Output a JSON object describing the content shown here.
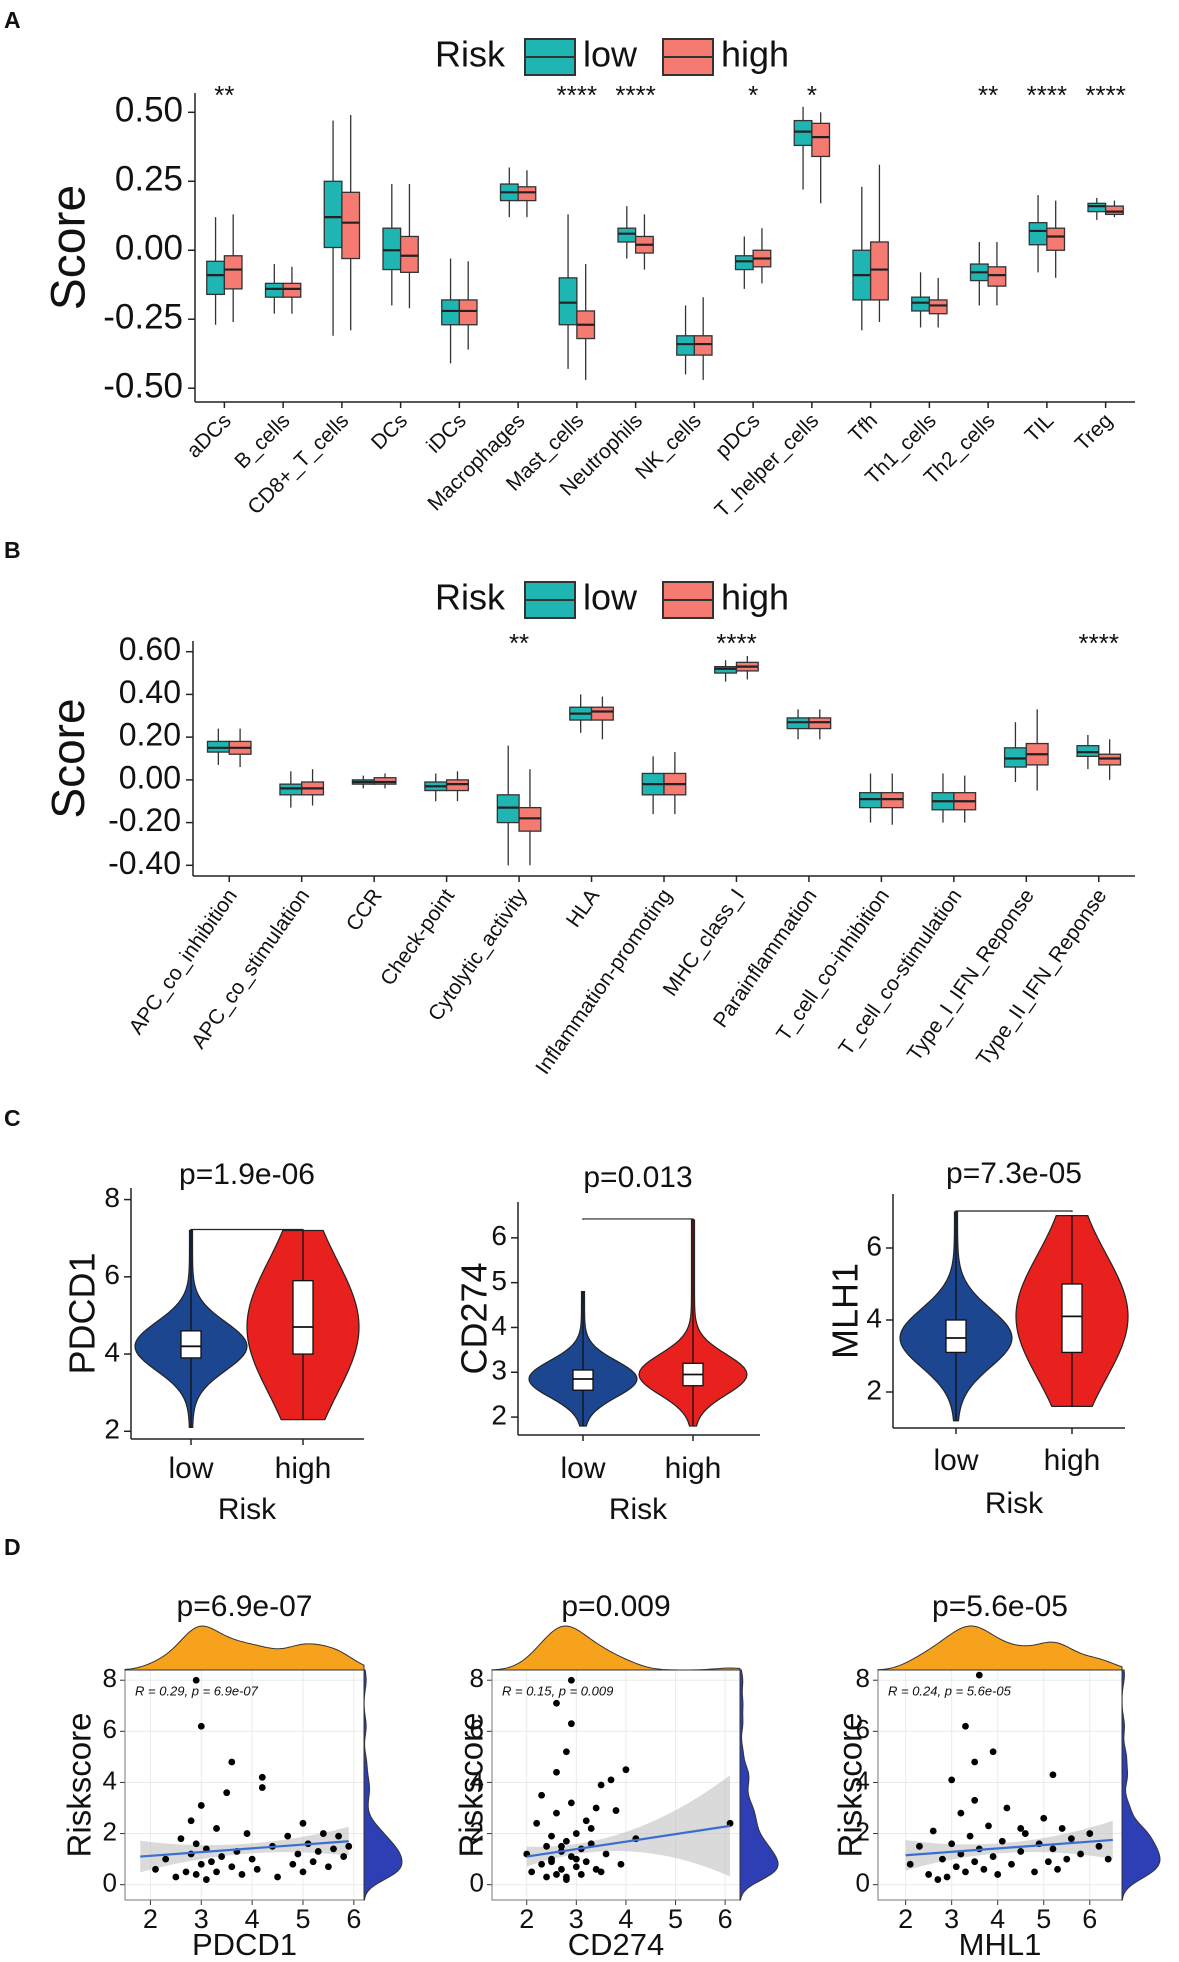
{
  "chart_data": [
    {
      "type": "box",
      "panel_label": "A",
      "legend_title": "Risk",
      "ylabel": "Score",
      "categories": [
        "aDCs",
        "B_cells",
        "CD8+_T_cells",
        "DCs",
        "iDCs",
        "Macrophages",
        "Mast_cells",
        "Neutrophils",
        "NK_cells",
        "pDCs",
        "T_helper_cells",
        "Tfh",
        "Th1_cells",
        "Th2_cells",
        "TIL",
        "Treg"
      ],
      "annotations": [
        "**",
        null,
        null,
        null,
        null,
        null,
        "****",
        "****",
        null,
        "*",
        "*",
        null,
        null,
        "**",
        "****",
        "****"
      ],
      "series": [
        {
          "name": "low",
          "color": "#1fb5b3",
          "values": [
            [
              -0.27,
              -0.16,
              -0.09,
              -0.04,
              0.12
            ],
            [
              -0.23,
              -0.17,
              -0.14,
              -0.12,
              -0.05
            ],
            [
              -0.31,
              0.01,
              0.12,
              0.25,
              0.47
            ],
            [
              -0.2,
              -0.07,
              0.0,
              0.08,
              0.24
            ],
            [
              -0.41,
              -0.27,
              -0.22,
              -0.18,
              -0.03
            ],
            [
              0.12,
              0.18,
              0.21,
              0.24,
              0.3
            ],
            [
              -0.43,
              -0.27,
              -0.19,
              -0.1,
              0.13
            ],
            [
              -0.03,
              0.03,
              0.06,
              0.08,
              0.16
            ],
            [
              -0.45,
              -0.38,
              -0.34,
              -0.31,
              -0.2
            ],
            [
              -0.14,
              -0.07,
              -0.04,
              -0.02,
              0.05
            ],
            [
              0.22,
              0.38,
              0.43,
              0.47,
              0.52
            ],
            [
              -0.29,
              -0.18,
              -0.09,
              0.0,
              0.23
            ],
            [
              -0.28,
              -0.22,
              -0.19,
              -0.17,
              -0.08
            ],
            [
              -0.2,
              -0.11,
              -0.08,
              -0.05,
              0.03
            ],
            [
              -0.08,
              0.02,
              0.07,
              0.1,
              0.2
            ],
            [
              0.11,
              0.14,
              0.16,
              0.17,
              0.19
            ]
          ]
        },
        {
          "name": "high",
          "color": "#f47a72",
          "values": [
            [
              -0.26,
              -0.14,
              -0.07,
              -0.02,
              0.13
            ],
            [
              -0.23,
              -0.17,
              -0.14,
              -0.12,
              -0.06
            ],
            [
              -0.29,
              -0.03,
              0.1,
              0.21,
              0.49
            ],
            [
              -0.21,
              -0.08,
              -0.02,
              0.05,
              0.24
            ],
            [
              -0.36,
              -0.27,
              -0.22,
              -0.18,
              -0.04
            ],
            [
              0.12,
              0.18,
              0.21,
              0.23,
              0.29
            ],
            [
              -0.47,
              -0.32,
              -0.27,
              -0.22,
              -0.05
            ],
            [
              -0.07,
              -0.01,
              0.02,
              0.05,
              0.13
            ],
            [
              -0.47,
              -0.38,
              -0.34,
              -0.31,
              -0.17
            ],
            [
              -0.12,
              -0.06,
              -0.03,
              0.0,
              0.08
            ],
            [
              0.17,
              0.34,
              0.41,
              0.46,
              0.5
            ],
            [
              -0.26,
              -0.18,
              -0.07,
              0.03,
              0.31
            ],
            [
              -0.28,
              -0.23,
              -0.2,
              -0.18,
              -0.1
            ],
            [
              -0.2,
              -0.13,
              -0.09,
              -0.06,
              0.03
            ],
            [
              -0.1,
              0.0,
              0.05,
              0.08,
              0.18
            ],
            [
              0.12,
              0.13,
              0.14,
              0.16,
              0.18
            ]
          ]
        }
      ],
      "ylim": [
        -0.55,
        0.57
      ],
      "yticks": [
        {
          "value": -0.5,
          "label": "-0.50"
        },
        {
          "value": -0.25,
          "label": "-0.25"
        },
        {
          "value": 0,
          "label": "0.00"
        },
        {
          "value": 0.25,
          "label": "0.25"
        },
        {
          "value": 0.5,
          "label": "0.50"
        }
      ]
    },
    {
      "type": "box",
      "panel_label": "B",
      "legend_title": "Risk",
      "ylabel": "Score",
      "categories": [
        "APC_co_inhibition",
        "APC_co_stimulation",
        "CCR",
        "Check-point",
        "Cytolytic_activity",
        "HLA",
        "Inflammation-promoting",
        "MHC_class_I",
        "Parainflammation",
        "T_cell_co-inhibition",
        "T_cell_co-stimulation",
        "Type_I_IFN_Reponse",
        "Type_II_IFN_Reponse"
      ],
      "annotations": [
        null,
        null,
        null,
        null,
        "**",
        null,
        null,
        "****",
        null,
        null,
        null,
        null,
        "****"
      ],
      "series": [
        {
          "name": "low",
          "color": "#1fb5b3",
          "values": [
            [
              0.07,
              0.13,
              0.15,
              0.18,
              0.24
            ],
            [
              -0.13,
              -0.07,
              -0.04,
              -0.02,
              0.04
            ],
            [
              -0.04,
              -0.02,
              -0.01,
              0.0,
              0.02
            ],
            [
              -0.1,
              -0.05,
              -0.03,
              -0.01,
              0.03
            ],
            [
              -0.4,
              -0.2,
              -0.13,
              -0.07,
              0.16
            ],
            [
              0.22,
              0.28,
              0.31,
              0.34,
              0.4
            ],
            [
              -0.16,
              -0.07,
              -0.02,
              0.03,
              0.11
            ],
            [
              0.46,
              0.5,
              0.52,
              0.53,
              0.56
            ],
            [
              0.19,
              0.24,
              0.27,
              0.29,
              0.33
            ],
            [
              -0.2,
              -0.13,
              -0.09,
              -0.06,
              0.03
            ],
            [
              -0.2,
              -0.14,
              -0.1,
              -0.06,
              0.03
            ],
            [
              -0.01,
              0.06,
              0.1,
              0.15,
              0.27
            ],
            [
              0.05,
              0.11,
              0.13,
              0.16,
              0.21
            ]
          ]
        },
        {
          "name": "high",
          "color": "#f47a72",
          "values": [
            [
              0.06,
              0.12,
              0.15,
              0.18,
              0.24
            ],
            [
              -0.12,
              -0.07,
              -0.04,
              -0.01,
              0.05
            ],
            [
              -0.04,
              -0.02,
              -0.01,
              0.01,
              0.03
            ],
            [
              -0.1,
              -0.05,
              -0.02,
              0.0,
              0.04
            ],
            [
              -0.4,
              -0.24,
              -0.18,
              -0.13,
              0.05
            ],
            [
              0.19,
              0.28,
              0.32,
              0.34,
              0.39
            ],
            [
              -0.16,
              -0.07,
              -0.02,
              0.03,
              0.13
            ],
            [
              0.47,
              0.51,
              0.53,
              0.55,
              0.58
            ],
            [
              0.19,
              0.24,
              0.27,
              0.29,
              0.33
            ],
            [
              -0.21,
              -0.13,
              -0.09,
              -0.06,
              0.03
            ],
            [
              -0.2,
              -0.14,
              -0.1,
              -0.06,
              0.02
            ],
            [
              -0.05,
              0.07,
              0.12,
              0.17,
              0.33
            ],
            [
              0.0,
              0.07,
              0.1,
              0.12,
              0.19
            ]
          ]
        }
      ],
      "ylim": [
        -0.45,
        0.65
      ],
      "yticks": [
        {
          "value": -0.4,
          "label": "-0.40"
        },
        {
          "value": -0.2,
          "label": "-0.20"
        },
        {
          "value": 0,
          "label": "0.00"
        },
        {
          "value": 0.2,
          "label": "0.20"
        },
        {
          "value": 0.4,
          "label": "0.40"
        },
        {
          "value": 0.6,
          "label": "0.60"
        }
      ]
    },
    {
      "type": "violin",
      "panel_label": "C",
      "title": "p=1.9e-06",
      "ylabel": "PDCD1",
      "xlabel": "Risk",
      "categories": [
        "low",
        "high"
      ],
      "colors": [
        "#1c4690",
        "#e8201e"
      ],
      "values": [
        [
          2.1,
          3.9,
          4.2,
          4.6,
          7.2
        ],
        [
          2.3,
          4.0,
          4.7,
          5.9,
          7.2
        ]
      ],
      "ylim": [
        1.8,
        8.3
      ],
      "yticks": [
        2,
        4,
        6,
        8
      ]
    },
    {
      "type": "violin",
      "title": "p=0.013",
      "ylabel": "CD274",
      "xlabel": "Risk",
      "categories": [
        "low",
        "high"
      ],
      "colors": [
        "#1c4690",
        "#e8201e"
      ],
      "values": [
        [
          1.8,
          2.6,
          2.85,
          3.05,
          4.8
        ],
        [
          1.8,
          2.7,
          2.95,
          3.2,
          6.4
        ]
      ],
      "ylim": [
        1.6,
        6.8
      ],
      "yticks": [
        2,
        3,
        4,
        5,
        6
      ]
    },
    {
      "type": "violin",
      "title": "p=7.3e-05",
      "ylabel": "MLH1",
      "xlabel": "Risk",
      "categories": [
        "low",
        "high"
      ],
      "colors": [
        "#1c4690",
        "#e8201e"
      ],
      "values": [
        [
          1.2,
          3.1,
          3.5,
          4.0,
          7.0
        ],
        [
          1.6,
          3.1,
          4.1,
          5.0,
          6.9
        ]
      ],
      "ylim": [
        1.0,
        7.5
      ],
      "yticks": [
        2,
        4,
        6
      ]
    },
    {
      "type": "scatter",
      "panel_label": "D",
      "title": "p=6.9e-07",
      "annotation": "R = 0.29, p = 6.9e-07",
      "xlabel": "PDCD1",
      "ylabel": "Riskscore",
      "x": [
        2.1,
        2.3,
        2.5,
        2.6,
        2.7,
        2.8,
        2.8,
        2.9,
        2.9,
        3.0,
        3.0,
        3.1,
        3.1,
        3.2,
        3.3,
        3.3,
        3.4,
        3.5,
        3.6,
        3.7,
        3.8,
        3.9,
        4.0,
        4.1,
        4.2,
        4.4,
        4.5,
        4.7,
        4.8,
        4.9,
        5.0,
        5.0,
        5.1,
        5.2,
        5.3,
        5.4,
        5.5,
        5.6,
        5.7,
        5.8,
        5.9,
        3.0,
        3.6,
        4.2,
        2.9
      ],
      "y": [
        0.6,
        1.0,
        0.3,
        1.8,
        0.5,
        1.2,
        2.5,
        0.4,
        1.6,
        0.8,
        3.1,
        0.2,
        1.4,
        0.9,
        2.2,
        0.5,
        1.1,
        3.6,
        0.7,
        1.3,
        0.4,
        2.0,
        1.0,
        0.6,
        3.8,
        1.5,
        0.3,
        1.9,
        0.8,
        1.2,
        2.4,
        0.5,
        1.6,
        0.9,
        1.3,
        2.0,
        0.7,
        1.4,
        1.9,
        1.1,
        1.5,
        6.2,
        4.8,
        4.2,
        8.0
      ],
      "fit": {
        "x": [
          1.8,
          5.9
        ],
        "y": [
          1.1,
          1.7
        ]
      },
      "color": "#000000",
      "fit_color": "#3a6fd0",
      "xlim": [
        1.5,
        6.2
      ],
      "xticks": [
        2,
        3,
        4,
        5,
        6
      ],
      "ylim": [
        -0.6,
        8.4
      ],
      "yticks": [
        0,
        2,
        4,
        6,
        8
      ]
    },
    {
      "type": "scatter",
      "title": "p=0.009",
      "annotation": "R = 0.15, p = 0.009",
      "xlabel": "CD274",
      "ylabel": "Riskscore",
      "x": [
        2.0,
        2.1,
        2.2,
        2.3,
        2.4,
        2.4,
        2.5,
        2.5,
        2.6,
        2.6,
        2.7,
        2.7,
        2.8,
        2.8,
        2.9,
        2.9,
        3.0,
        3.0,
        3.1,
        3.1,
        3.2,
        3.2,
        3.3,
        3.4,
        3.5,
        3.6,
        3.7,
        3.8,
        3.9,
        4.0,
        4.2,
        2.3,
        2.6,
        2.8,
        3.0,
        2.5,
        2.9,
        3.3,
        2.7,
        3.5,
        6.1,
        2.6,
        2.9,
        3.4,
        2.8
      ],
      "y": [
        1.2,
        0.5,
        2.4,
        0.8,
        1.5,
        0.3,
        1.9,
        1.0,
        0.4,
        2.8,
        1.3,
        0.6,
        1.7,
        0.2,
        3.2,
        1.1,
        0.7,
        2.0,
        1.4,
        0.4,
        2.5,
        0.9,
        1.6,
        0.6,
        3.9,
        1.2,
        4.1,
        2.9,
        0.8,
        4.5,
        1.8,
        3.5,
        4.4,
        5.2,
        1.0,
        0.9,
        6.3,
        2.2,
        1.5,
        0.5,
        2.4,
        7.1,
        8.0,
        3.0,
        0.3
      ],
      "fit": {
        "x": [
          2.0,
          6.1
        ],
        "y": [
          1.1,
          2.3
        ]
      },
      "color": "#000000",
      "fit_color": "#3a6fd0",
      "xlim": [
        1.3,
        6.3
      ],
      "xticks": [
        2,
        3,
        4,
        5,
        6
      ],
      "ylim": [
        -0.6,
        8.4
      ],
      "yticks": [
        0,
        2,
        4,
        6,
        8
      ]
    },
    {
      "type": "scatter",
      "title": "p=5.6e-05",
      "annotation": "R = 0.24, p = 5.6e-05",
      "xlabel": "MHL1",
      "ylabel": "Riskscore",
      "x": [
        2.1,
        2.3,
        2.5,
        2.6,
        2.8,
        2.9,
        3.0,
        3.1,
        3.2,
        3.2,
        3.3,
        3.4,
        3.5,
        3.5,
        3.6,
        3.7,
        3.8,
        3.9,
        4.0,
        4.1,
        4.2,
        4.3,
        4.5,
        4.6,
        4.8,
        4.9,
        5.0,
        5.1,
        5.2,
        5.3,
        5.4,
        5.5,
        5.6,
        5.8,
        6.0,
        6.2,
        6.4,
        3.0,
        3.3,
        3.5,
        3.9,
        5.2,
        3.6,
        4.5,
        2.7
      ],
      "y": [
        0.8,
        1.5,
        0.4,
        2.1,
        1.0,
        0.3,
        1.6,
        0.7,
        2.8,
        1.2,
        0.5,
        1.9,
        0.9,
        3.3,
        1.4,
        0.6,
        2.3,
        1.1,
        0.4,
        1.7,
        3.0,
        0.8,
        1.3,
        2.0,
        0.5,
        1.6,
        2.6,
        0.9,
        1.4,
        0.6,
        2.2,
        1.0,
        1.8,
        1.2,
        2.0,
        1.5,
        1.0,
        4.1,
        6.2,
        4.8,
        5.2,
        4.3,
        8.2,
        2.2,
        0.2
      ],
      "fit": {
        "x": [
          2.0,
          6.5
        ],
        "y": [
          1.15,
          1.75
        ]
      },
      "color": "#000000",
      "fit_color": "#3a6fd0",
      "xlim": [
        1.4,
        6.7
      ],
      "xticks": [
        2,
        3,
        4,
        5,
        6
      ],
      "ylim": [
        -0.6,
        8.4
      ],
      "yticks": [
        0,
        2,
        4,
        6,
        8
      ]
    }
  ]
}
